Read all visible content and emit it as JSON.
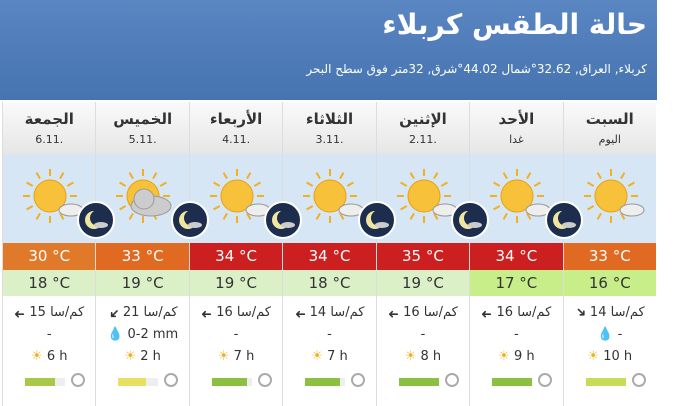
{
  "header": {
    "title": "حالة الطقس كربلاء",
    "subtitle": "كربلاء, العراق, 32.62°شمال 44.02°شرق, 32متر فوق سطح البحر"
  },
  "days": [
    {
      "name": "السبت",
      "date": "اليوم",
      "max": "33 °C",
      "min": "16 °C",
      "wind": "14 كم/سا",
      "precip": "-",
      "sun": "10 h"
    },
    {
      "name": "الأحد",
      "date": "غدا",
      "max": "34 °C",
      "min": "17 °C",
      "wind": "16 كم/سا",
      "precip": "-",
      "sun": "9 h"
    },
    {
      "name": "الإثنين",
      "date": "2.11.",
      "max": "35 °C",
      "min": "19 °C",
      "wind": "16 كم/سا",
      "precip": "-",
      "sun": "8 h"
    },
    {
      "name": "الثلاثاء",
      "date": "3.11.",
      "max": "34 °C",
      "min": "18 °C",
      "wind": "14 كم/سا",
      "precip": "-",
      "sun": "7 h"
    },
    {
      "name": "الأربعاء",
      "date": "4.11.",
      "max": "34 °C",
      "min": "19 °C",
      "wind": "16 كم/سا",
      "precip": "-",
      "sun": "7 h"
    },
    {
      "name": "الخميس",
      "date": "5.11.",
      "max": "33 °C",
      "min": "19 °C",
      "wind": "21 كم/سا",
      "precip": "0-2 mm",
      "sun": "2 h"
    },
    {
      "name": "الجمعة",
      "date": "6.11.",
      "max": "30 °C",
      "min": "18 °C",
      "wind": "15 كم/سا",
      "precip": "-",
      "sun": "6 h"
    }
  ]
}
